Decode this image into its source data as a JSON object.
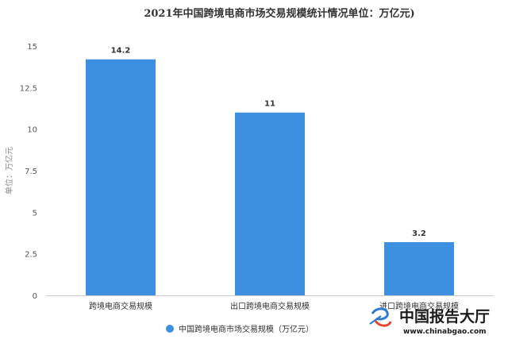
{
  "chart_data": {
    "type": "bar",
    "title": "2021年中国跨境电商市场交易规模统计情况单位：万亿元)",
    "ylabel": "单位：万亿元",
    "xlabel": "",
    "categories": [
      "跨境电商交易规模",
      "出口跨境电商交易规模",
      "进口跨境电商交易规模"
    ],
    "series": [
      {
        "name": "中国跨境电商市场交易规模（万亿元）",
        "values": [
          14.2,
          11,
          3.2
        ],
        "color": "#3d8fdf"
      }
    ],
    "data_labels": [
      "14.2",
      "11",
      "3.2"
    ],
    "ylim": [
      0,
      15
    ],
    "yticks": [
      0,
      2.5,
      5,
      7.5,
      10,
      12.5,
      15
    ],
    "ytick_labels": [
      "0",
      "2.5",
      "5",
      "7.5",
      "10",
      "12.5",
      "15"
    ],
    "grid": false,
    "legend": "bottom-center"
  },
  "watermark": {
    "brand": "中国报告大厅",
    "url": "www.chinabgao.com",
    "icon": "chinabgao-logo-icon"
  }
}
